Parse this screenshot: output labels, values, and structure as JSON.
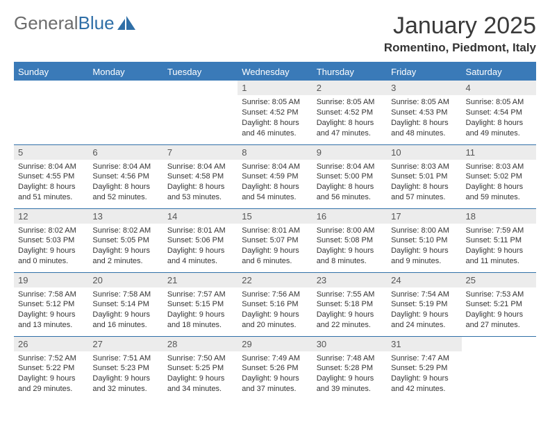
{
  "brand": {
    "word1": "General",
    "word2": "Blue"
  },
  "colors": {
    "brandBlue": "#2f6fa7",
    "headerBlue": "#3a7ab8",
    "dayBg": "#ececec",
    "text": "#333333",
    "logoGray": "#6c6c6c"
  },
  "title": {
    "month": "January 2025",
    "location": "Romentino, Piedmont, Italy"
  },
  "dayHeaders": [
    "Sunday",
    "Monday",
    "Tuesday",
    "Wednesday",
    "Thursday",
    "Friday",
    "Saturday"
  ],
  "weeks": [
    [
      null,
      null,
      null,
      {
        "n": "1",
        "sunrise": "Sunrise: 8:05 AM",
        "sunset": "Sunset: 4:52 PM",
        "d1": "Daylight: 8 hours",
        "d2": "and 46 minutes."
      },
      {
        "n": "2",
        "sunrise": "Sunrise: 8:05 AM",
        "sunset": "Sunset: 4:52 PM",
        "d1": "Daylight: 8 hours",
        "d2": "and 47 minutes."
      },
      {
        "n": "3",
        "sunrise": "Sunrise: 8:05 AM",
        "sunset": "Sunset: 4:53 PM",
        "d1": "Daylight: 8 hours",
        "d2": "and 48 minutes."
      },
      {
        "n": "4",
        "sunrise": "Sunrise: 8:05 AM",
        "sunset": "Sunset: 4:54 PM",
        "d1": "Daylight: 8 hours",
        "d2": "and 49 minutes."
      }
    ],
    [
      {
        "n": "5",
        "sunrise": "Sunrise: 8:04 AM",
        "sunset": "Sunset: 4:55 PM",
        "d1": "Daylight: 8 hours",
        "d2": "and 51 minutes."
      },
      {
        "n": "6",
        "sunrise": "Sunrise: 8:04 AM",
        "sunset": "Sunset: 4:56 PM",
        "d1": "Daylight: 8 hours",
        "d2": "and 52 minutes."
      },
      {
        "n": "7",
        "sunrise": "Sunrise: 8:04 AM",
        "sunset": "Sunset: 4:58 PM",
        "d1": "Daylight: 8 hours",
        "d2": "and 53 minutes."
      },
      {
        "n": "8",
        "sunrise": "Sunrise: 8:04 AM",
        "sunset": "Sunset: 4:59 PM",
        "d1": "Daylight: 8 hours",
        "d2": "and 54 minutes."
      },
      {
        "n": "9",
        "sunrise": "Sunrise: 8:04 AM",
        "sunset": "Sunset: 5:00 PM",
        "d1": "Daylight: 8 hours",
        "d2": "and 56 minutes."
      },
      {
        "n": "10",
        "sunrise": "Sunrise: 8:03 AM",
        "sunset": "Sunset: 5:01 PM",
        "d1": "Daylight: 8 hours",
        "d2": "and 57 minutes."
      },
      {
        "n": "11",
        "sunrise": "Sunrise: 8:03 AM",
        "sunset": "Sunset: 5:02 PM",
        "d1": "Daylight: 8 hours",
        "d2": "and 59 minutes."
      }
    ],
    [
      {
        "n": "12",
        "sunrise": "Sunrise: 8:02 AM",
        "sunset": "Sunset: 5:03 PM",
        "d1": "Daylight: 9 hours",
        "d2": "and 0 minutes."
      },
      {
        "n": "13",
        "sunrise": "Sunrise: 8:02 AM",
        "sunset": "Sunset: 5:05 PM",
        "d1": "Daylight: 9 hours",
        "d2": "and 2 minutes."
      },
      {
        "n": "14",
        "sunrise": "Sunrise: 8:01 AM",
        "sunset": "Sunset: 5:06 PM",
        "d1": "Daylight: 9 hours",
        "d2": "and 4 minutes."
      },
      {
        "n": "15",
        "sunrise": "Sunrise: 8:01 AM",
        "sunset": "Sunset: 5:07 PM",
        "d1": "Daylight: 9 hours",
        "d2": "and 6 minutes."
      },
      {
        "n": "16",
        "sunrise": "Sunrise: 8:00 AM",
        "sunset": "Sunset: 5:08 PM",
        "d1": "Daylight: 9 hours",
        "d2": "and 8 minutes."
      },
      {
        "n": "17",
        "sunrise": "Sunrise: 8:00 AM",
        "sunset": "Sunset: 5:10 PM",
        "d1": "Daylight: 9 hours",
        "d2": "and 9 minutes."
      },
      {
        "n": "18",
        "sunrise": "Sunrise: 7:59 AM",
        "sunset": "Sunset: 5:11 PM",
        "d1": "Daylight: 9 hours",
        "d2": "and 11 minutes."
      }
    ],
    [
      {
        "n": "19",
        "sunrise": "Sunrise: 7:58 AM",
        "sunset": "Sunset: 5:12 PM",
        "d1": "Daylight: 9 hours",
        "d2": "and 13 minutes."
      },
      {
        "n": "20",
        "sunrise": "Sunrise: 7:58 AM",
        "sunset": "Sunset: 5:14 PM",
        "d1": "Daylight: 9 hours",
        "d2": "and 16 minutes."
      },
      {
        "n": "21",
        "sunrise": "Sunrise: 7:57 AM",
        "sunset": "Sunset: 5:15 PM",
        "d1": "Daylight: 9 hours",
        "d2": "and 18 minutes."
      },
      {
        "n": "22",
        "sunrise": "Sunrise: 7:56 AM",
        "sunset": "Sunset: 5:16 PM",
        "d1": "Daylight: 9 hours",
        "d2": "and 20 minutes."
      },
      {
        "n": "23",
        "sunrise": "Sunrise: 7:55 AM",
        "sunset": "Sunset: 5:18 PM",
        "d1": "Daylight: 9 hours",
        "d2": "and 22 minutes."
      },
      {
        "n": "24",
        "sunrise": "Sunrise: 7:54 AM",
        "sunset": "Sunset: 5:19 PM",
        "d1": "Daylight: 9 hours",
        "d2": "and 24 minutes."
      },
      {
        "n": "25",
        "sunrise": "Sunrise: 7:53 AM",
        "sunset": "Sunset: 5:21 PM",
        "d1": "Daylight: 9 hours",
        "d2": "and 27 minutes."
      }
    ],
    [
      {
        "n": "26",
        "sunrise": "Sunrise: 7:52 AM",
        "sunset": "Sunset: 5:22 PM",
        "d1": "Daylight: 9 hours",
        "d2": "and 29 minutes."
      },
      {
        "n": "27",
        "sunrise": "Sunrise: 7:51 AM",
        "sunset": "Sunset: 5:23 PM",
        "d1": "Daylight: 9 hours",
        "d2": "and 32 minutes."
      },
      {
        "n": "28",
        "sunrise": "Sunrise: 7:50 AM",
        "sunset": "Sunset: 5:25 PM",
        "d1": "Daylight: 9 hours",
        "d2": "and 34 minutes."
      },
      {
        "n": "29",
        "sunrise": "Sunrise: 7:49 AM",
        "sunset": "Sunset: 5:26 PM",
        "d1": "Daylight: 9 hours",
        "d2": "and 37 minutes."
      },
      {
        "n": "30",
        "sunrise": "Sunrise: 7:48 AM",
        "sunset": "Sunset: 5:28 PM",
        "d1": "Daylight: 9 hours",
        "d2": "and 39 minutes."
      },
      {
        "n": "31",
        "sunrise": "Sunrise: 7:47 AM",
        "sunset": "Sunset: 5:29 PM",
        "d1": "Daylight: 9 hours",
        "d2": "and 42 minutes."
      },
      null
    ]
  ]
}
